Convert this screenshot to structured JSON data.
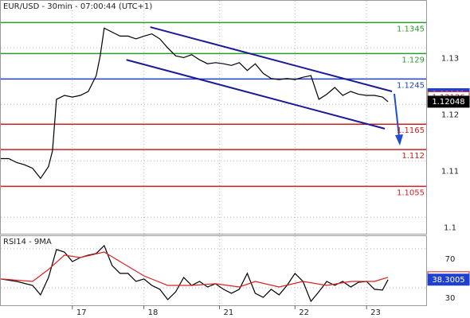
{
  "chart_data": [
    {
      "type": "line",
      "title": "EUR/USD - 30min - 07:00:44 (UTC+1)",
      "xlim": [
        0,
        107
      ],
      "ylim": [
        1.0971,
        1.13835
      ],
      "yticks": [
        1.13,
        1.12,
        1.11,
        1.1
      ],
      "grid": true,
      "series": [
        {
          "color": "#000000",
          "x": [
            0,
            2,
            4,
            6,
            8,
            10,
            12,
            13,
            14,
            16,
            18,
            20,
            22,
            24,
            25,
            26,
            28,
            30,
            32,
            34,
            36,
            38,
            40,
            42,
            44,
            46,
            48,
            50,
            52,
            54,
            56,
            58,
            60,
            62,
            64,
            66,
            68,
            70,
            72,
            74,
            76,
            78,
            80,
            82,
            84,
            86,
            88,
            90,
            92,
            94,
            96,
            97.4
          ],
          "values": [
            1.1104,
            1.1104,
            1.1097,
            1.1093,
            1.1087,
            1.1069,
            1.109,
            1.1118,
            1.1209,
            1.1216,
            1.1213,
            1.1216,
            1.1223,
            1.1251,
            1.1286,
            1.1335,
            1.1328,
            1.1321,
            1.1321,
            1.1316,
            1.1321,
            1.1325,
            1.1316,
            1.13,
            1.1286,
            1.1283,
            1.1288,
            1.1279,
            1.1272,
            1.1274,
            1.1272,
            1.1269,
            1.1274,
            1.126,
            1.1272,
            1.1255,
            1.1246,
            1.1244,
            1.1246,
            1.1244,
            1.1248,
            1.1251,
            1.1209,
            1.1218,
            1.123,
            1.1216,
            1.1223,
            1.1218,
            1.1216,
            1.1216,
            1.1213,
            1.12048
          ]
        }
      ],
      "levels": [
        {
          "value": 1.1345,
          "color": "#2f9a2f"
        },
        {
          "value": 1.129,
          "color": "#2f9a2f"
        },
        {
          "value": 1.1245,
          "color": "#1f3fc0"
        },
        {
          "value": 1.1165,
          "color": "#cc2020"
        },
        {
          "value": 1.112,
          "color": "#cc2020"
        },
        {
          "value": 1.1055,
          "color": "#cc2020"
        }
      ],
      "trendlines": [
        {
          "x": [
            37.6,
            98.4
          ],
          "y": [
            1.1337,
            1.1223
          ],
          "color": "#1a1a9a"
        },
        {
          "x": [
            31.6,
            96.6
          ],
          "y": [
            1.1279,
            1.1157
          ],
          "color": "#1a1a9a"
        }
      ],
      "price_markers": [
        {
          "value": 1.12181,
          "color": "#1f3fd0",
          "filled": true
        },
        {
          "value": 1.12126,
          "color": "#cc2020",
          "filled": false
        },
        {
          "value": 1.12048,
          "color": "#000000",
          "filled": true
        }
      ]
    },
    {
      "type": "line",
      "title": "RSI14 - 9MA",
      "xlim": [
        0,
        107
      ],
      "ylim": [
        12,
        83
      ],
      "yticks": [
        70,
        30
      ],
      "grid": true,
      "xticks": [
        {
          "value": 18,
          "label": "17"
        },
        {
          "value": 36,
          "label": "18"
        },
        {
          "value": 55,
          "label": "21"
        },
        {
          "value": 74,
          "label": "22"
        },
        {
          "value": 92,
          "label": "23"
        }
      ],
      "series": [
        {
          "color": "#000000",
          "x": [
            0,
            4,
            8,
            10,
            12,
            14,
            16,
            18,
            20,
            22,
            24,
            26,
            28,
            30,
            32,
            34,
            36,
            38,
            40,
            42,
            44,
            46,
            48,
            50,
            52,
            54,
            56,
            58,
            60,
            62,
            64,
            66,
            68,
            70,
            72,
            74,
            76,
            78,
            80,
            82,
            84,
            86,
            88,
            90,
            92,
            94,
            96,
            97.4
          ],
          "values": [
            39.0,
            36.5,
            32.4,
            22.7,
            40.6,
            69.2,
            66.7,
            56.9,
            61.0,
            63.5,
            65.1,
            73.3,
            52.9,
            44.7,
            44.7,
            36.5,
            39.0,
            32.4,
            28.4,
            17.8,
            25.9,
            40.6,
            32.4,
            36.5,
            30.8,
            34.1,
            28.4,
            24.3,
            28.4,
            44.7,
            24.3,
            20.2,
            28.4,
            22.7,
            32.4,
            44.7,
            36.5,
            16.1,
            25.9,
            36.5,
            32.4,
            36.5,
            30.8,
            35.7,
            36.5,
            28.4,
            27.6,
            38.3
          ]
        },
        {
          "color": "#dd2020",
          "x": [
            0,
            8,
            12,
            16,
            20,
            26,
            30,
            36,
            42,
            48,
            54,
            60,
            64,
            70,
            76,
            82,
            88,
            94,
            97.4
          ],
          "values": [
            39.0,
            36.5,
            48.8,
            63.5,
            61.0,
            66.7,
            56.9,
            42.2,
            32.4,
            32.4,
            34.1,
            30.8,
            36.5,
            30.8,
            36.5,
            32.4,
            36.5,
            36.5,
            40.7
          ]
        }
      ],
      "price_markers": [
        {
          "value": 40.6839,
          "color": "#cc2020",
          "filled": false
        },
        {
          "value": 38.3005,
          "color": "#1f3fd0",
          "filled": true
        }
      ]
    }
  ]
}
